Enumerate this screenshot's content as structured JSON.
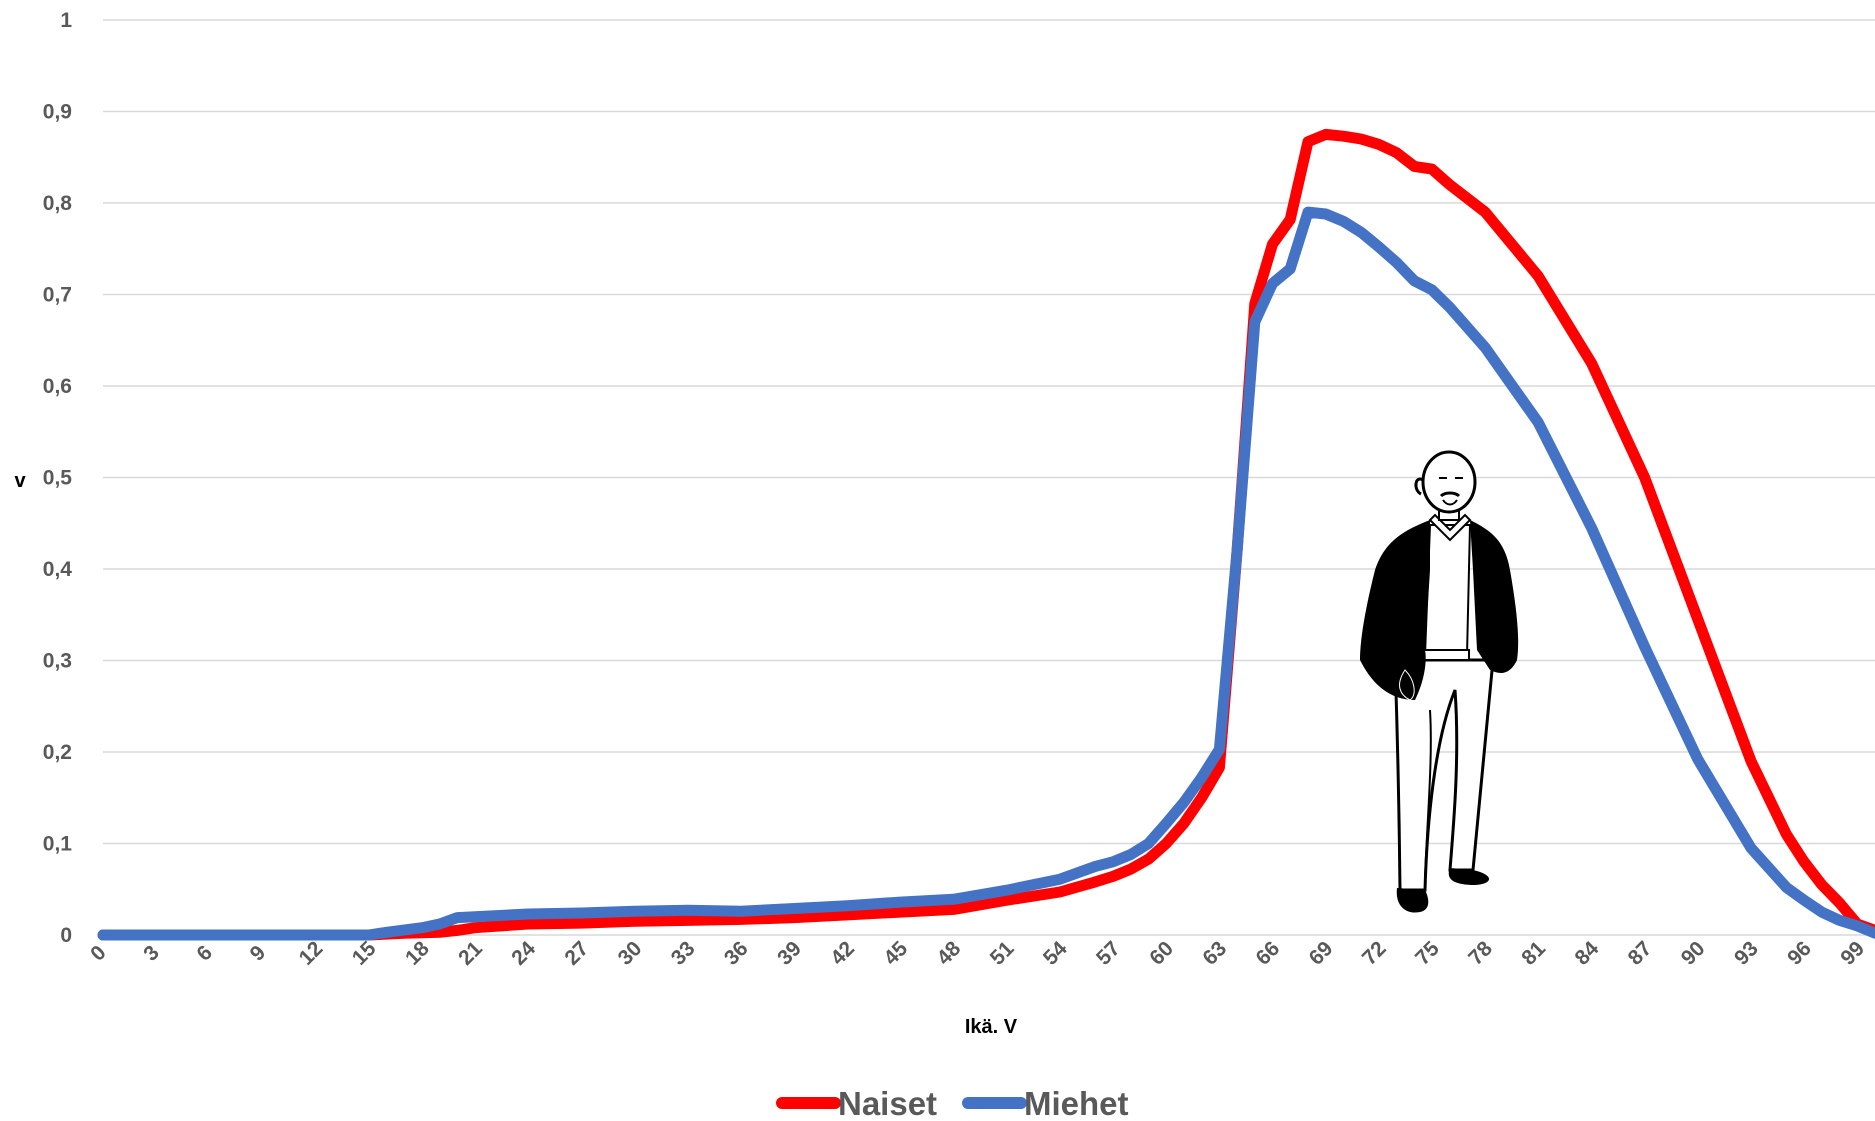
{
  "chart_data": {
    "type": "line",
    "xlabel": "Ikä. V",
    "ylabel": "v",
    "ylim": [
      0,
      1
    ],
    "xlim": [
      0,
      100
    ],
    "y_ticks": [
      "0",
      "0,1",
      "0,2",
      "0,3",
      "0,4",
      "0,5",
      "0,6",
      "0,7",
      "0,8",
      "0,9",
      "1"
    ],
    "x_ticks": [
      "0",
      "3",
      "6",
      "9",
      "12",
      "15",
      "18",
      "21",
      "24",
      "27",
      "30",
      "33",
      "36",
      "39",
      "42",
      "45",
      "48",
      "51",
      "54",
      "57",
      "60",
      "63",
      "66",
      "69",
      "72",
      "75",
      "78",
      "81",
      "84",
      "87",
      "90",
      "93",
      "96",
      "99"
    ],
    "grid": "horizontal",
    "legend_position": "bottom",
    "series": [
      {
        "name": "Naiset",
        "color": "#ff0000",
        "points": [
          [
            0,
            0
          ],
          [
            15,
            0
          ],
          [
            17,
            0.002
          ],
          [
            19,
            0.003
          ],
          [
            20,
            0.005
          ],
          [
            21,
            0.008
          ],
          [
            24,
            0.012
          ],
          [
            27,
            0.013
          ],
          [
            30,
            0.015
          ],
          [
            33,
            0.016
          ],
          [
            36,
            0.017
          ],
          [
            39,
            0.019
          ],
          [
            42,
            0.022
          ],
          [
            45,
            0.025
          ],
          [
            48,
            0.028
          ],
          [
            51,
            0.038
          ],
          [
            54,
            0.047
          ],
          [
            56,
            0.058
          ],
          [
            57,
            0.064
          ],
          [
            58,
            0.072
          ],
          [
            59,
            0.083
          ],
          [
            60,
            0.1
          ],
          [
            61,
            0.122
          ],
          [
            62,
            0.15
          ],
          [
            63,
            0.183
          ],
          [
            64,
            0.42
          ],
          [
            65,
            0.69
          ],
          [
            66,
            0.755
          ],
          [
            67,
            0.782
          ],
          [
            68,
            0.867
          ],
          [
            69,
            0.875
          ],
          [
            70,
            0.873
          ],
          [
            71,
            0.87
          ],
          [
            72,
            0.864
          ],
          [
            73,
            0.855
          ],
          [
            74,
            0.84
          ],
          [
            75,
            0.837
          ],
          [
            76,
            0.82
          ],
          [
            78,
            0.79
          ],
          [
            81,
            0.72
          ],
          [
            84,
            0.625
          ],
          [
            87,
            0.5
          ],
          [
            90,
            0.345
          ],
          [
            93,
            0.19
          ],
          [
            95,
            0.11
          ],
          [
            96,
            0.08
          ],
          [
            97,
            0.055
          ],
          [
            98,
            0.035
          ],
          [
            99,
            0.012
          ],
          [
            100,
            0.005
          ]
        ]
      },
      {
        "name": "Miehet",
        "color": "#4472c4",
        "points": [
          [
            0,
            0
          ],
          [
            15,
            0
          ],
          [
            16,
            0.003
          ],
          [
            18,
            0.008
          ],
          [
            19,
            0.012
          ],
          [
            20,
            0.019
          ],
          [
            21,
            0.02
          ],
          [
            24,
            0.023
          ],
          [
            27,
            0.024
          ],
          [
            30,
            0.026
          ],
          [
            33,
            0.027
          ],
          [
            36,
            0.026
          ],
          [
            39,
            0.029
          ],
          [
            42,
            0.032
          ],
          [
            45,
            0.036
          ],
          [
            48,
            0.039
          ],
          [
            51,
            0.049
          ],
          [
            54,
            0.061
          ],
          [
            56,
            0.075
          ],
          [
            57,
            0.08
          ],
          [
            58,
            0.088
          ],
          [
            59,
            0.1
          ],
          [
            60,
            0.122
          ],
          [
            61,
            0.145
          ],
          [
            62,
            0.172
          ],
          [
            63,
            0.203
          ],
          [
            64,
            0.42
          ],
          [
            65,
            0.67
          ],
          [
            66,
            0.712
          ],
          [
            67,
            0.728
          ],
          [
            68,
            0.79
          ],
          [
            69,
            0.788
          ],
          [
            70,
            0.78
          ],
          [
            71,
            0.768
          ],
          [
            72,
            0.752
          ],
          [
            73,
            0.735
          ],
          [
            74,
            0.715
          ],
          [
            75,
            0.705
          ],
          [
            76,
            0.686
          ],
          [
            78,
            0.642
          ],
          [
            81,
            0.56
          ],
          [
            84,
            0.445
          ],
          [
            87,
            0.315
          ],
          [
            90,
            0.192
          ],
          [
            93,
            0.095
          ],
          [
            95,
            0.052
          ],
          [
            96,
            0.038
          ],
          [
            97,
            0.025
          ],
          [
            98,
            0.016
          ],
          [
            99,
            0.01
          ],
          [
            100,
            0.002
          ]
        ]
      }
    ]
  }
}
